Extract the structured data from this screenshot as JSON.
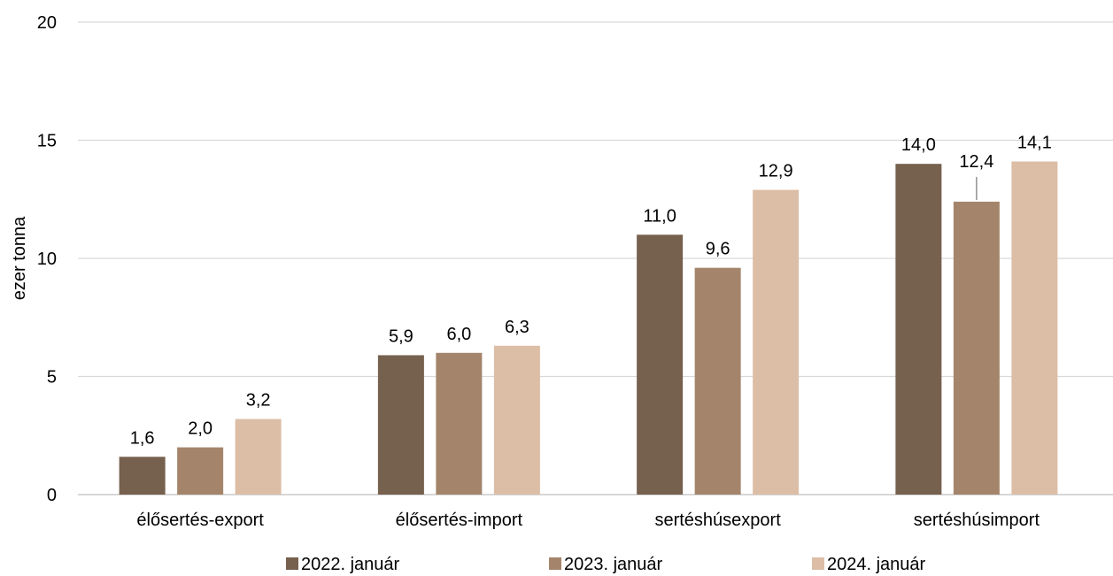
{
  "chart_data": {
    "type": "bar",
    "title": "",
    "xlabel": "",
    "ylabel": "ezer tonna",
    "ylim": [
      0,
      20
    ],
    "yticks": [
      "0",
      "5",
      "10",
      "15",
      "20"
    ],
    "grid": true,
    "legend_position": "bottom",
    "categories": [
      "élősertés-export",
      "élősertés-import",
      "sertéshúsexport",
      "sertéshúsimport"
    ],
    "series": [
      {
        "name": "2022. január",
        "color": "#76604e",
        "values": [
          1.6,
          5.9,
          11.0,
          14.0
        ],
        "labels": [
          "1,6",
          "5,9",
          "11,0",
          "14,0"
        ]
      },
      {
        "name": "2023. január",
        "color": "#a4856b",
        "values": [
          2.0,
          6.0,
          9.6,
          12.4
        ],
        "labels": [
          "2,0",
          "6,0",
          "9,6",
          "12,4"
        ]
      },
      {
        "name": "2024. január",
        "color": "#dcbea6",
        "values": [
          3.2,
          6.3,
          12.9,
          14.1
        ],
        "labels": [
          "3,2",
          "6,3",
          "12,9",
          "14,1"
        ]
      }
    ]
  }
}
